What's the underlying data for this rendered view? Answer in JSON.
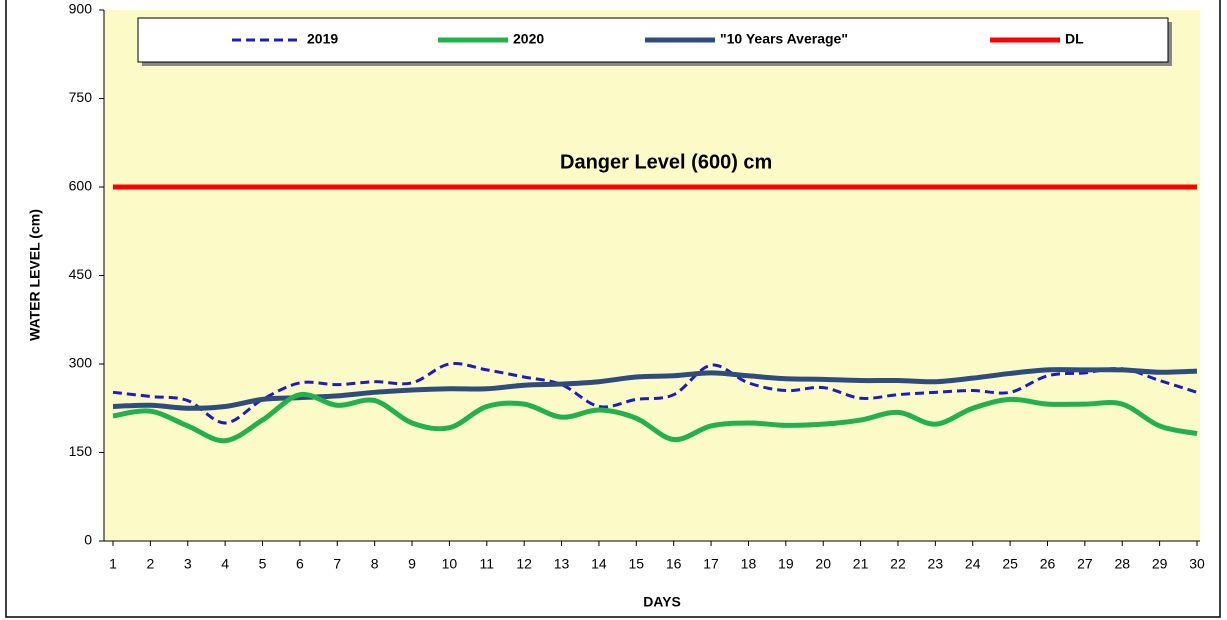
{
  "chart_data": {
    "type": "line",
    "xlabel": "DAYS",
    "ylabel": "WATER LEVEL (cm)",
    "annotation": "Danger Level (600) cm",
    "categories": [
      "1",
      "2",
      "3",
      "4",
      "5",
      "6",
      "7",
      "8",
      "9",
      "10",
      "11",
      "12",
      "13",
      "14",
      "15",
      "16",
      "17",
      "18",
      "19",
      "20",
      "21",
      "22",
      "23",
      "24",
      "25",
      "26",
      "27",
      "28",
      "29",
      "30"
    ],
    "ylim": [
      0,
      900
    ],
    "yticks": [
      0,
      150,
      300,
      450,
      600,
      750,
      900
    ],
    "series": [
      {
        "name": "2019",
        "color": "#1c1cc4",
        "dashed": true,
        "values": [
          252,
          245,
          238,
          200,
          240,
          268,
          265,
          270,
          268,
          300,
          290,
          278,
          265,
          228,
          240,
          248,
          298,
          268,
          255,
          260,
          242,
          248,
          252,
          255,
          252,
          280,
          285,
          292,
          272,
          252
        ]
      },
      {
        "name": "2020",
        "color": "#22b24c",
        "values": [
          212,
          220,
          195,
          170,
          205,
          248,
          230,
          238,
          200,
          192,
          228,
          232,
          210,
          222,
          208,
          172,
          195,
          200,
          196,
          198,
          205,
          218,
          198,
          225,
          240,
          232,
          232,
          232,
          195,
          182
        ]
      },
      {
        "name": "\"10 Years Average\"",
        "color": "#2e4d7e",
        "values": [
          228,
          230,
          225,
          228,
          240,
          243,
          246,
          252,
          256,
          258,
          258,
          264,
          266,
          270,
          278,
          280,
          285,
          280,
          275,
          274,
          272,
          272,
          270,
          276,
          284,
          290,
          290,
          290,
          286,
          288
        ]
      },
      {
        "name": "DL",
        "color": "#ff0000",
        "values": [
          600,
          600,
          600,
          600,
          600,
          600,
          600,
          600,
          600,
          600,
          600,
          600,
          600,
          600,
          600,
          600,
          600,
          600,
          600,
          600,
          600,
          600,
          600,
          600,
          600,
          600,
          600,
          600,
          600,
          600
        ]
      }
    ]
  }
}
